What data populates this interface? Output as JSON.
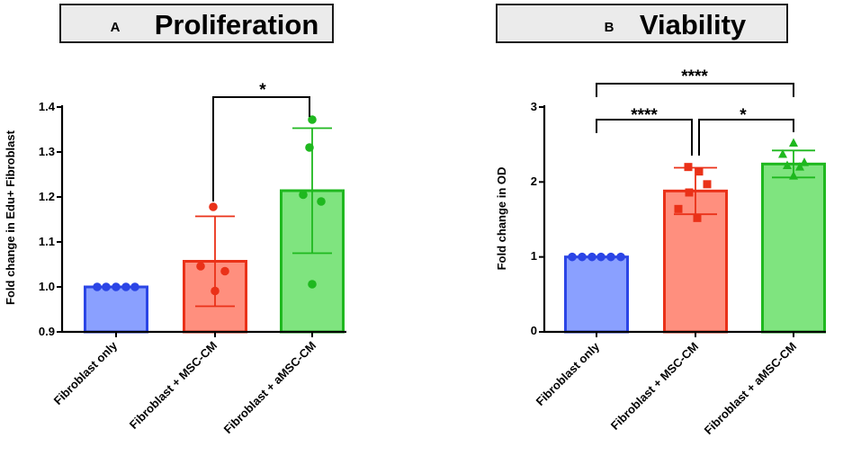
{
  "colors": {
    "blue_fill": "#8aa0ff",
    "blue_edge": "#2b45e6",
    "red_fill": "#ff8f7e",
    "red_edge": "#ea3118",
    "green_fill": "#7fe47f",
    "green_edge": "#1fb81f"
  },
  "chart_data": [
    {
      "panel": "A",
      "title": "Proliferation",
      "type": "bar",
      "ylabel": "Fold change in Edu+ Fibroblast",
      "xlabel": "",
      "ylim": [
        0.9,
        1.4
      ],
      "yticks": [
        "0.9",
        "1.0",
        "1.1",
        "1.2",
        "1.3",
        "1.4"
      ],
      "categories": [
        "Fibroblast only",
        "Fibroblast + MSC-CM",
        "Fibroblast + aMSC-CM"
      ],
      "values": [
        1.0,
        1.057,
        1.214
      ],
      "sd": [
        0.0,
        0.1,
        0.139
      ],
      "marker": "circle",
      "points": [
        [
          1.0,
          1.0,
          1.0,
          1.0,
          1.0
        ],
        [
          1.178,
          1.046,
          1.035,
          0.991
        ],
        [
          1.372,
          1.31,
          1.205,
          1.19,
          1.006
        ]
      ],
      "significance": [
        {
          "from": 1,
          "to": 2,
          "label": "*"
        }
      ]
    },
    {
      "panel": "B",
      "title": "Viability",
      "type": "bar",
      "ylabel": "Fold change in OD",
      "xlabel": "",
      "ylim": [
        0,
        3
      ],
      "yticks": [
        "0",
        "1",
        "2",
        "3"
      ],
      "categories": [
        "Fibroblast only",
        "Fibroblast + MSC-CM",
        "Fibroblast + aMSC-CM"
      ],
      "values": [
        1.0,
        1.88,
        2.24
      ],
      "sd": [
        0.0,
        0.31,
        0.18
      ],
      "markers": [
        "circle",
        "square",
        "triangle"
      ],
      "points": [
        [
          1.0,
          1.0,
          1.0,
          1.0,
          1.0,
          1.0
        ],
        [
          2.2,
          2.14,
          1.97,
          1.86,
          1.64,
          1.52
        ],
        [
          2.52,
          2.37,
          2.26,
          2.22,
          2.2,
          2.08
        ]
      ],
      "significance": [
        {
          "from": 0,
          "to": 2,
          "label": "****"
        },
        {
          "from": 0,
          "to": 1,
          "label": "****"
        },
        {
          "from": 1,
          "to": 2,
          "label": "*"
        }
      ]
    }
  ]
}
